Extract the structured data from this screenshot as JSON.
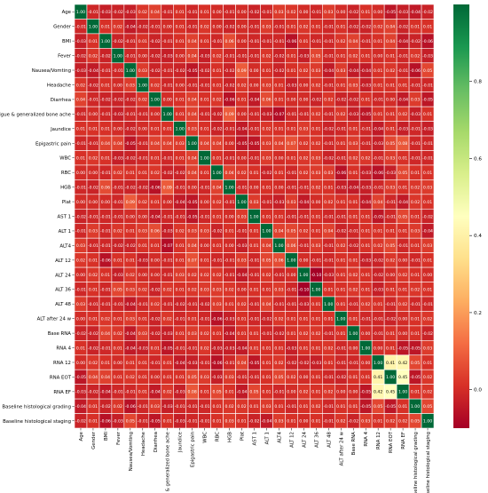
{
  "chart_data": {
    "type": "heatmap",
    "title": "",
    "labels": [
      "Age",
      "Gender",
      "BMI",
      "Fever",
      "Nausea/Vomting",
      "Headache",
      "Diarrhea",
      "Fatigue & generalized bone ache",
      "Jaundice",
      "Epigastric pain",
      "WBC",
      "RBC",
      "HGB",
      "Plat",
      "AST 1",
      "ALT 1",
      "ALT4",
      "ALT 12",
      "ALT 24",
      "ALT 36",
      "ALT 48",
      "ALT after 24 w",
      "Base RNA",
      "RNA 4",
      "RNA 12",
      "RNA EOT",
      "RNA EF",
      "Baseline histological grading",
      "Baseline histological staging"
    ],
    "values": [
      [
        1.0,
        -0.01,
        -0.03,
        -0.02,
        -0.03,
        0.02,
        0.04,
        -0.01,
        0.01,
        -0.01,
        0.01,
        -0.0,
        -0.01,
        -0.0,
        -0.02,
        -0.01,
        0.03,
        0.02,
        0.0,
        -0.01,
        0.03,
        0.0,
        -0.02,
        0.01,
        -0.0,
        -0.05,
        -0.03,
        -0.04,
        -0.02
      ],
      [
        -0.01,
        1.0,
        0.01,
        0.02,
        -0.04,
        -0.02,
        -0.01,
        0.0,
        0.01,
        -0.01,
        0.02,
        -0.0,
        -0.02,
        -0.0,
        -0.01,
        0.03,
        -0.01,
        0.01,
        0.02,
        0.01,
        -0.01,
        0.01,
        -0.02,
        -0.02,
        0.02,
        0.04,
        -0.02,
        0.01,
        0.01
      ],
      [
        -0.03,
        0.01,
        1.0,
        -0.02,
        -0.01,
        0.01,
        -0.02,
        -0.01,
        0.01,
        0.04,
        0.01,
        -0.01,
        0.06,
        -0.0,
        -0.01,
        -0.01,
        -0.01,
        -0.06,
        0.01,
        -0.01,
        -0.01,
        0.02,
        0.04,
        -0.01,
        0.01,
        0.04,
        -0.04,
        -0.02,
        -0.06
      ],
      [
        -0.02,
        0.02,
        -0.02,
        1.0,
        -0.01,
        -0.0,
        -0.02,
        -0.03,
        -0.0,
        0.04,
        -0.03,
        0.02,
        -0.01,
        -0.01,
        -0.01,
        0.02,
        -0.02,
        0.01,
        -0.03,
        0.05,
        -0.01,
        0.01,
        0.02,
        0.01,
        0.0,
        0.01,
        -0.01,
        0.02,
        -0.03
      ],
      [
        -0.03,
        -0.04,
        -0.01,
        -0.01,
        1.0,
        0.03,
        -0.02,
        -0.01,
        -0.02,
        -0.05,
        -0.02,
        0.01,
        -0.02,
        0.09,
        0.0,
        0.01,
        -0.02,
        0.01,
        0.02,
        0.03,
        -0.04,
        0.03,
        -0.04,
        -0.04,
        0.01,
        0.02,
        -0.01,
        -0.06,
        0.05
      ],
      [
        0.02,
        -0.02,
        0.01,
        -0.0,
        0.03,
        1.0,
        0.02,
        -0.01,
        -0.0,
        -0.01,
        -0.01,
        0.01,
        -0.02,
        0.02,
        0.0,
        0.03,
        0.01,
        -0.03,
        -0.0,
        0.02,
        -0.01,
        0.01,
        0.03,
        -0.03,
        0.01,
        0.01,
        0.01,
        -0.01,
        -0.01
      ],
      [
        0.04,
        -0.01,
        -0.02,
        -0.02,
        -0.02,
        0.02,
        1.0,
        0.0,
        0.01,
        0.04,
        0.01,
        0.02,
        -0.06,
        0.01,
        -0.04,
        0.06,
        0.01,
        0.0,
        0.0,
        -0.02,
        0.02,
        -0.02,
        -0.02,
        0.01,
        -0.01,
        0.0,
        -0.04,
        0.03,
        -0.05
      ],
      [
        -0.01,
        0.0,
        -0.01,
        -0.03,
        -0.01,
        -0.01,
        0.0,
        1.0,
        0.01,
        0.04,
        -0.01,
        -0.02,
        0.09,
        -0.0,
        -0.01,
        -0.03,
        -0.07,
        -0.01,
        -0.01,
        0.02,
        -0.01,
        0.02,
        -0.03,
        -0.05,
        0.01,
        0.01,
        0.02,
        -0.03,
        0.01
      ],
      [
        0.01,
        0.01,
        0.01,
        -0.0,
        -0.02,
        -0.0,
        0.01,
        0.01,
        1.0,
        0.03,
        0.01,
        -0.02,
        -0.01,
        -0.04,
        -0.01,
        0.02,
        0.01,
        0.01,
        0.03,
        0.01,
        -0.02,
        -0.01,
        0.01,
        -0.01,
        -0.04,
        0.01,
        -0.03,
        -0.01,
        -0.03
      ],
      [
        -0.01,
        -0.01,
        0.04,
        0.04,
        -0.05,
        -0.01,
        0.04,
        0.04,
        0.03,
        1.0,
        0.04,
        0.04,
        0.0,
        -0.05,
        -0.05,
        0.03,
        0.04,
        0.07,
        0.02,
        0.02,
        -0.01,
        0.01,
        0.03,
        -0.01,
        -0.03,
        0.05,
        0.08,
        -0.01,
        -0.01
      ],
      [
        0.01,
        0.02,
        0.01,
        -0.03,
        -0.02,
        -0.01,
        0.01,
        -0.01,
        0.01,
        0.04,
        1.0,
        0.01,
        -0.01,
        0.0,
        -0.01,
        0.03,
        -0.0,
        0.01,
        0.02,
        0.03,
        -0.02,
        -0.01,
        0.02,
        0.02,
        -0.01,
        0.03,
        0.01,
        -0.01,
        -0.01
      ],
      [
        -0.0,
        -0.0,
        -0.01,
        0.02,
        0.01,
        0.01,
        0.02,
        -0.02,
        -0.02,
        0.04,
        0.01,
        1.0,
        0.04,
        0.02,
        0.01,
        -0.02,
        0.01,
        -0.01,
        0.02,
        0.03,
        0.03,
        -0.06,
        0.01,
        -0.03,
        -0.06,
        -0.03,
        0.05,
        0.01,
        0.01
      ],
      [
        -0.01,
        -0.02,
        0.06,
        -0.01,
        -0.02,
        -0.02,
        -0.06,
        0.09,
        -0.01,
        0.0,
        -0.01,
        0.04,
        1.0,
        -0.01,
        0.0,
        0.01,
        0.0,
        -0.01,
        -0.01,
        0.02,
        0.01,
        -0.03,
        -0.04,
        -0.03,
        -0.01,
        0.03,
        0.01,
        0.02,
        0.03
      ],
      [
        -0.0,
        -0.0,
        -0.0,
        -0.01,
        0.09,
        0.02,
        0.01,
        -0.0,
        -0.04,
        -0.05,
        0.0,
        0.02,
        -0.01,
        1.0,
        0.03,
        -0.01,
        -0.03,
        0.03,
        -0.04,
        -0.0,
        0.02,
        0.01,
        0.01,
        -0.04,
        0.04,
        -0.01,
        -0.04,
        0.02,
        0.01
      ],
      [
        -0.02,
        -0.01,
        -0.01,
        -0.01,
        0.0,
        0.0,
        -0.04,
        -0.01,
        -0.01,
        -0.05,
        -0.01,
        0.01,
        0.0,
        0.03,
        1.0,
        0.01,
        0.01,
        -0.01,
        -0.01,
        0.01,
        -0.01,
        -0.01,
        0.01,
        0.01,
        -0.05,
        -0.01,
        0.05,
        0.01,
        -0.02
      ],
      [
        -0.01,
        0.03,
        -0.01,
        0.02,
        0.01,
        0.03,
        0.06,
        -0.03,
        0.02,
        0.03,
        0.03,
        -0.02,
        0.01,
        -0.01,
        0.01,
        1.0,
        0.04,
        0.05,
        0.02,
        0.01,
        0.04,
        -0.02,
        -0.01,
        0.01,
        0.01,
        0.01,
        0.01,
        0.03,
        -0.04
      ],
      [
        0.03,
        -0.01,
        -0.01,
        -0.02,
        -0.02,
        0.01,
        0.01,
        -0.07,
        0.01,
        0.04,
        -0.0,
        0.01,
        0.0,
        -0.03,
        0.01,
        0.04,
        1.0,
        0.06,
        -0.01,
        0.03,
        -0.01,
        0.02,
        -0.02,
        0.01,
        0.02,
        0.05,
        -0.01,
        0.01,
        0.03
      ],
      [
        0.02,
        0.01,
        -0.06,
        0.01,
        0.01,
        -0.03,
        0.0,
        -0.01,
        0.01,
        0.07,
        0.01,
        -0.01,
        -0.01,
        0.03,
        -0.01,
        0.05,
        0.06,
        1.0,
        -0.0,
        -0.01,
        -0.01,
        0.01,
        0.01,
        -0.03,
        -0.02,
        0.02,
        -0.0,
        -0.01,
        0.01
      ],
      [
        0.0,
        0.02,
        0.01,
        -0.03,
        0.02,
        -0.0,
        0.0,
        -0.01,
        0.03,
        0.02,
        0.02,
        0.02,
        -0.01,
        -0.04,
        -0.01,
        0.02,
        -0.01,
        -0.0,
        1.0,
        -0.1,
        -0.03,
        0.01,
        0.02,
        0.01,
        -0.02,
        0.0,
        0.02,
        0.01,
        0.0
      ],
      [
        -0.01,
        0.01,
        -0.01,
        0.05,
        0.03,
        0.02,
        -0.02,
        0.02,
        0.01,
        0.02,
        0.03,
        0.03,
        0.02,
        -0.0,
        0.01,
        0.01,
        0.03,
        -0.01,
        -0.1,
        1.0,
        0.01,
        0.01,
        0.02,
        0.01,
        -0.03,
        0.01,
        0.01,
        0.02,
        0.01
      ],
      [
        0.03,
        -0.01,
        -0.01,
        -0.01,
        -0.04,
        -0.01,
        0.02,
        -0.01,
        -0.02,
        -0.01,
        -0.02,
        0.03,
        0.01,
        0.02,
        -0.01,
        0.04,
        -0.01,
        -0.01,
        -0.03,
        0.01,
        1.0,
        0.01,
        -0.01,
        0.02,
        0.01,
        -0.01,
        0.02,
        -0.01,
        -0.01
      ],
      [
        0.0,
        0.01,
        0.02,
        0.01,
        0.03,
        0.01,
        -0.02,
        0.02,
        -0.01,
        0.01,
        -0.01,
        -0.06,
        -0.03,
        0.01,
        -0.01,
        -0.02,
        0.02,
        0.01,
        0.01,
        0.01,
        0.01,
        1.0,
        0.01,
        -0.01,
        -0.01,
        -0.02,
        0.0,
        0.01,
        0.02
      ],
      [
        -0.02,
        -0.02,
        0.04,
        0.02,
        -0.04,
        0.03,
        -0.02,
        -0.03,
        0.01,
        0.03,
        0.02,
        0.01,
        -0.04,
        0.01,
        0.01,
        -0.01,
        -0.02,
        0.01,
        0.02,
        0.02,
        -0.01,
        0.01,
        1.0,
        0.0,
        -0.01,
        0.01,
        -0.0,
        0.01,
        -0.02
      ],
      [
        0.01,
        -0.02,
        -0.01,
        0.01,
        -0.04,
        -0.03,
        0.01,
        -0.05,
        -0.01,
        -0.01,
        0.02,
        -0.03,
        -0.03,
        -0.04,
        0.01,
        0.01,
        0.01,
        -0.03,
        0.01,
        0.01,
        0.02,
        -0.01,
        0.0,
        1.0,
        0.0,
        0.01,
        -0.05,
        -0.05,
        0.03
      ],
      [
        -0.0,
        0.02,
        0.01,
        0.0,
        0.01,
        0.01,
        -0.01,
        0.01,
        -0.04,
        -0.03,
        -0.01,
        -0.06,
        -0.01,
        0.04,
        -0.05,
        0.01,
        0.02,
        -0.02,
        -0.02,
        -0.03,
        0.01,
        -0.01,
        -0.01,
        0.0,
        1.0,
        0.41,
        0.42,
        0.05,
        0.01
      ],
      [
        -0.05,
        0.04,
        0.04,
        0.01,
        0.02,
        0.01,
        0.0,
        0.01,
        0.01,
        0.05,
        0.03,
        -0.03,
        0.03,
        -0.01,
        -0.01,
        0.01,
        0.05,
        0.02,
        0.0,
        0.01,
        -0.01,
        -0.02,
        0.01,
        0.01,
        0.41,
        1.0,
        0.45,
        -0.05,
        0.02
      ],
      [
        -0.03,
        -0.02,
        -0.04,
        -0.01,
        -0.01,
        0.01,
        -0.04,
        0.02,
        -0.03,
        0.08,
        0.01,
        0.05,
        0.01,
        -0.04,
        0.05,
        0.01,
        -0.01,
        -0.0,
        0.02,
        0.01,
        0.02,
        0.0,
        -0.0,
        -0.05,
        0.42,
        0.45,
        1.0,
        0.01,
        0.02
      ],
      [
        -0.04,
        0.01,
        -0.02,
        0.02,
        -0.06,
        -0.01,
        0.03,
        -0.03,
        -0.01,
        -0.01,
        -0.01,
        0.01,
        0.02,
        0.02,
        0.01,
        0.03,
        0.01,
        -0.01,
        0.01,
        0.02,
        -0.01,
        0.01,
        0.01,
        -0.05,
        0.05,
        -0.05,
        0.01,
        1.0,
        0.05
      ],
      [
        -0.02,
        0.01,
        -0.06,
        -0.03,
        0.05,
        -0.01,
        -0.05,
        0.01,
        -0.03,
        -0.01,
        -0.01,
        0.01,
        0.03,
        0.01,
        -0.02,
        -0.04,
        0.03,
        0.01,
        0.0,
        0.01,
        -0.01,
        0.02,
        -0.02,
        0.03,
        0.01,
        0.02,
        0.02,
        0.05,
        1.0
      ]
    ],
    "colorbar": {
      "colormap": "RdYlGn",
      "vmin": -0.1,
      "vmax": 1.0,
      "ticks": [
        0.0,
        0.2,
        0.4,
        0.6,
        0.8
      ]
    },
    "grid": true
  }
}
